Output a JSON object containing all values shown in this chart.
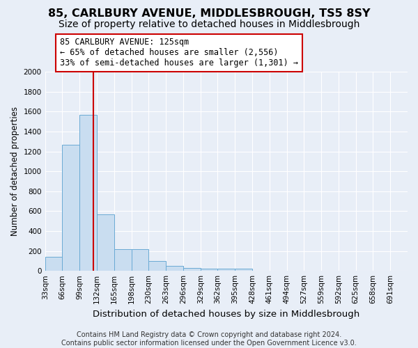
{
  "title": "85, CARLBURY AVENUE, MIDDLESBROUGH, TS5 8SY",
  "subtitle": "Size of property relative to detached houses in Middlesbrough",
  "xlabel": "Distribution of detached houses by size in Middlesbrough",
  "ylabel": "Number of detached properties",
  "bin_labels": [
    "33sqm",
    "66sqm",
    "99sqm",
    "132sqm",
    "165sqm",
    "198sqm",
    "230sqm",
    "263sqm",
    "296sqm",
    "329sqm",
    "362sqm",
    "395sqm",
    "428sqm",
    "461sqm",
    "494sqm",
    "527sqm",
    "559sqm",
    "592sqm",
    "625sqm",
    "658sqm",
    "691sqm"
  ],
  "bar_heights": [
    140,
    1265,
    1570,
    570,
    215,
    215,
    100,
    50,
    30,
    25,
    25,
    25,
    0,
    0,
    0,
    0,
    0,
    0,
    0,
    0,
    0
  ],
  "bar_color": "#c9ddf0",
  "bar_edge_color": "#6aaad4",
  "red_line_color": "#cc0000",
  "annotation_line1": "85 CARLBURY AVENUE: 125sqm",
  "annotation_line2": "← 65% of detached houses are smaller (2,556)",
  "annotation_line3": "33% of semi-detached houses are larger (1,301) →",
  "annotation_box_color": "white",
  "annotation_box_edge_color": "#cc0000",
  "ylim": [
    0,
    2000
  ],
  "yticks": [
    0,
    200,
    400,
    600,
    800,
    1000,
    1200,
    1400,
    1600,
    1800,
    2000
  ],
  "footer_text": "Contains HM Land Registry data © Crown copyright and database right 2024.\nContains public sector information licensed under the Open Government Licence v3.0.",
  "background_color": "#e8eef7",
  "plot_bg_color": "#e8eef7",
  "title_fontsize": 11.5,
  "subtitle_fontsize": 10,
  "xlabel_fontsize": 9.5,
  "ylabel_fontsize": 8.5,
  "tick_fontsize": 7.5,
  "annotation_fontsize": 8.5,
  "footer_fontsize": 7
}
